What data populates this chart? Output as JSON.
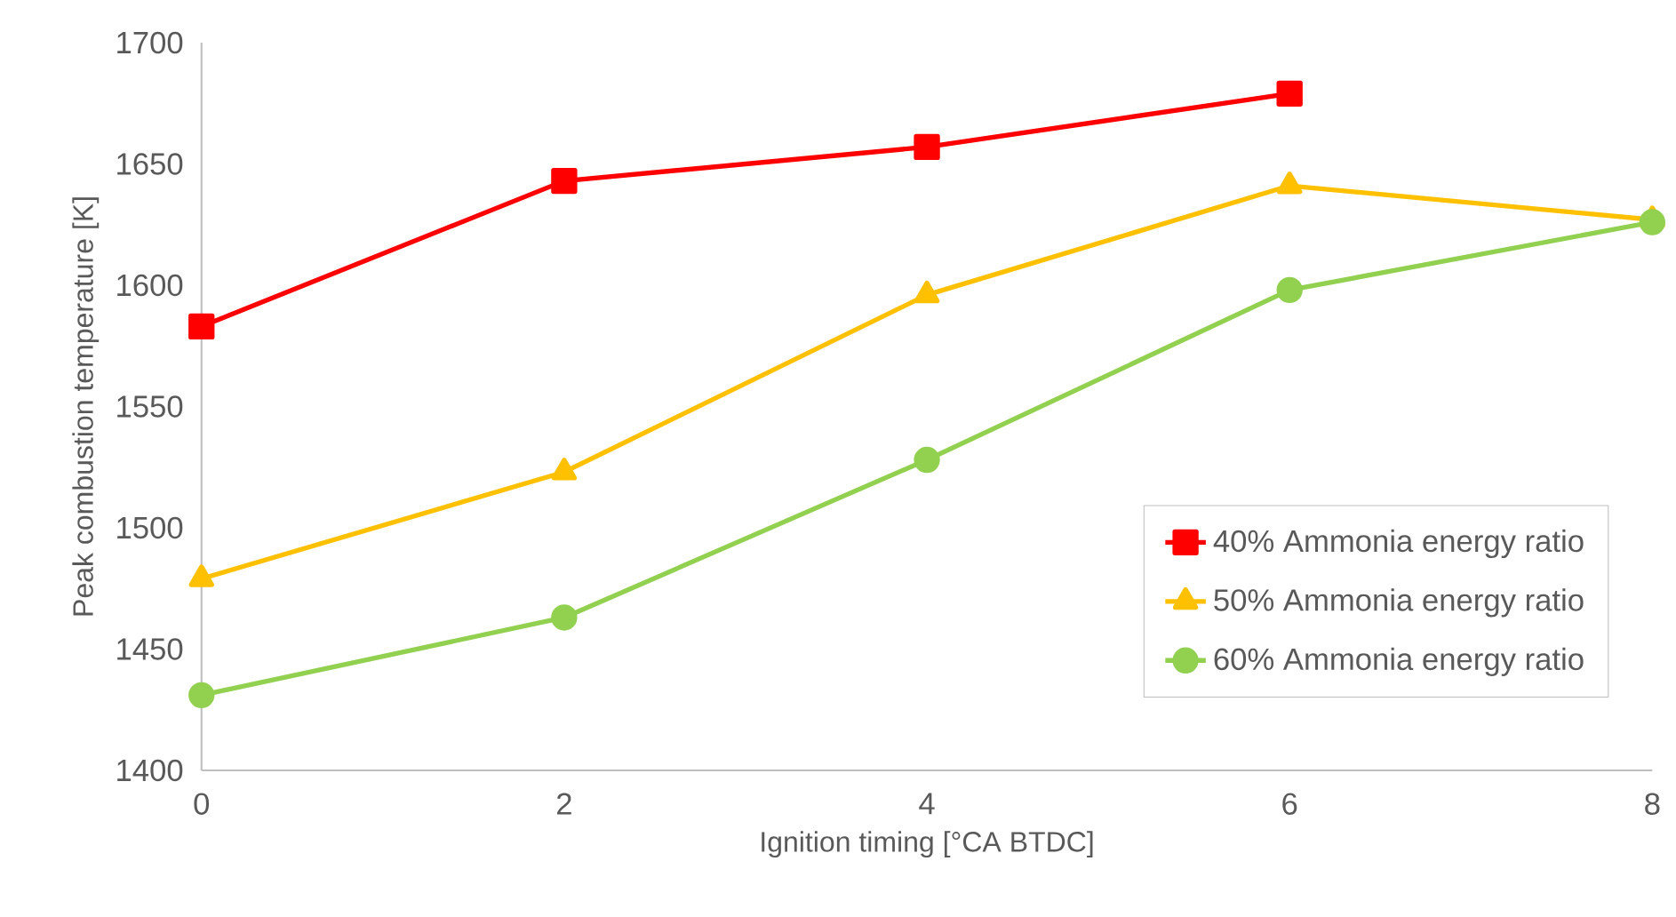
{
  "chart_data": {
    "type": "line",
    "xlabel": "Ignition timing [°CA BTDC]",
    "ylabel": "Peak combustion temperature [K]",
    "x": [
      0,
      2,
      4,
      6,
      8
    ],
    "xlim": [
      0,
      8
    ],
    "xticks": [
      0,
      2,
      4,
      6,
      8
    ],
    "ylim": [
      1400,
      1700
    ],
    "yticks": [
      1400,
      1450,
      1500,
      1550,
      1600,
      1650,
      1700
    ],
    "grid": false,
    "legend": "bottom right",
    "line_style": "solid",
    "series": [
      {
        "name": "40% Ammonia energy ratio",
        "color": "#ff0000",
        "marker": "square",
        "values": [
          1583,
          1643,
          1657,
          1679,
          null
        ]
      },
      {
        "name": "50% Ammonia energy ratio",
        "color": "#ffc000",
        "marker": "triangle",
        "values": [
          1479,
          1523,
          1596,
          1641,
          1627
        ]
      },
      {
        "name": "60% Ammonia energy ratio",
        "color": "#92d050",
        "marker": "circle",
        "values": [
          1431,
          1463,
          1528,
          1598,
          1626
        ]
      }
    ]
  }
}
